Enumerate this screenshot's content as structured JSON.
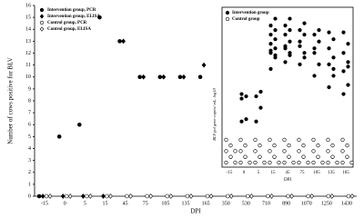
{
  "chart_data": [
    {
      "type": "dot",
      "y_label": "Number of cows positive for BLV",
      "x_label": "DPI",
      "categories": [
        "-15",
        "0",
        "5",
        "15",
        "45",
        "75",
        "105",
        "135",
        "165",
        "350",
        "530",
        "710",
        "890",
        "1070",
        "1250",
        "1430"
      ],
      "series": [
        {
          "name": "Intervention group, PCR",
          "marker": "circle",
          "filled": true,
          "color": "#000000",
          "values": [
            0,
            5,
            6,
            15,
            13,
            10,
            10,
            10,
            10,
            null,
            null,
            null,
            null,
            null,
            null,
            null
          ]
        },
        {
          "name": "Intervention group, ELISA",
          "marker": "diamond",
          "filled": true,
          "color": "#000000",
          "values": [
            0,
            0,
            0,
            0,
            13,
            10,
            10,
            10,
            11,
            null,
            null,
            null,
            null,
            null,
            null,
            null
          ]
        },
        {
          "name": "Control group, PCR",
          "marker": "circle",
          "filled": false,
          "color": "#000000",
          "values": [
            0,
            0,
            0,
            0,
            0,
            0,
            0,
            0,
            0,
            0,
            0,
            0,
            0,
            0,
            0,
            0
          ]
        },
        {
          "name": "Control group, ELISA",
          "marker": "diamond",
          "filled": false,
          "color": "#000000",
          "values": [
            0,
            0,
            0,
            0,
            0,
            0,
            0,
            0,
            0,
            0,
            0,
            0,
            0,
            0,
            0,
            0
          ]
        }
      ],
      "ylim": [
        0,
        16
      ],
      "yticks": [
        0,
        1,
        2,
        3,
        4,
        5,
        6,
        7,
        8,
        9,
        10,
        11,
        12,
        13,
        14,
        15,
        16
      ]
    },
    {
      "type": "strip",
      "y_label": "BLV pol gene copies/ mL, log10",
      "x_label": "DPI",
      "categories": [
        "-15",
        "0",
        "5",
        "15",
        "45",
        "75",
        "105",
        "135",
        "165"
      ],
      "series": [
        {
          "name": "Intervention group",
          "filled": true,
          "color": "#000000",
          "values": [
            [],
            [
              2,
              2.1,
              3,
              3.1,
              3.2
            ],
            [
              2,
              2.6,
              3.1,
              3.3
            ],
            [
              4.3,
              4.8,
              5,
              5.2,
              5.4,
              5.6,
              5.8,
              6,
              6.2,
              6.5,
              5.1,
              4.9
            ],
            [
              4.6,
              5,
              5.3,
              5.5,
              5.8,
              6,
              6.2,
              6.5,
              5.2,
              4.9
            ],
            [
              4.5,
              4.8,
              5.3,
              5.8,
              6,
              6.3,
              5.5,
              5
            ],
            [
              4,
              4.5,
              5,
              5.5,
              5.8,
              6,
              5.2
            ],
            [
              3.5,
              4,
              4.5,
              4.8,
              5.2,
              5.6,
              5.9,
              4.3
            ],
            [
              3.2,
              3.6,
              4.2,
              4.6,
              5,
              5.4,
              5.9,
              4.4
            ]
          ]
        },
        {
          "name": "Control group",
          "filled": false,
          "color": "#000000",
          "values": [
            [
              0.2,
              0.45,
              0.7,
              0.95,
              1.2,
              0.2,
              0.45,
              0.7
            ],
            [
              0.2,
              0.45,
              0.7,
              0.95,
              1.2,
              0.2,
              0.45
            ],
            [
              0.2,
              0.45,
              0.7,
              0.95,
              1.2,
              0.2,
              0.45
            ],
            [
              0.2,
              0.45,
              0.7,
              0.95,
              1.2,
              0.2,
              0.45
            ],
            [
              0.2,
              0.45,
              0.7,
              0.95,
              1.2,
              0.2,
              0.45
            ],
            [
              0.2,
              0.45,
              0.7,
              0.95,
              1.2,
              0.2,
              0.45
            ],
            [
              0.2,
              0.45,
              0.7,
              0.95,
              1.2,
              0.2,
              0.45
            ],
            [
              0.2,
              0.45,
              0.7,
              0.95,
              1.2,
              0.2,
              0.45
            ],
            [
              0.2,
              0.45,
              0.7,
              0.95,
              1.2,
              0.2,
              0.45
            ]
          ]
        }
      ],
      "ylim": [
        0,
        7
      ]
    }
  ]
}
